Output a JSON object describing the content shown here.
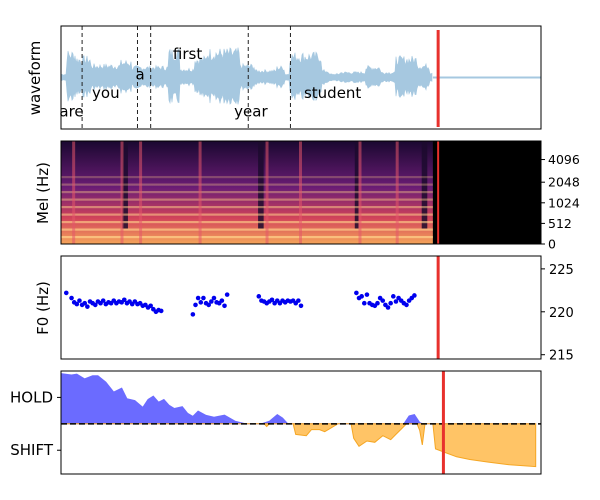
{
  "chart_data": [
    {
      "type": "area",
      "ylabel": "waveform",
      "words": [
        {
          "label": "are",
          "x": 0.04
        },
        {
          "label": "you",
          "x": 0.17
        },
        {
          "label": "a",
          "x": 0.3
        },
        {
          "label": "first",
          "x": 0.48
        },
        {
          "label": "year",
          "x": 0.72
        },
        {
          "label": "student",
          "x": 1.03
        }
      ],
      "boundaries": [
        0.08,
        0.29,
        0.34,
        0.71,
        0.87
      ],
      "cursor_x": 1.43,
      "audio_end_x": 1.41,
      "xlim": [
        0,
        1.82
      ],
      "colors": {
        "wave": "#a6c8e0",
        "cursor": "#e8312d"
      }
    },
    {
      "type": "heatmap",
      "ylabel": "Mel (Hz)",
      "yticks": [
        0,
        512,
        1024,
        2048,
        4096
      ],
      "ytick_labels": [
        "0",
        "512",
        "1024",
        "2048",
        "4096"
      ],
      "cursor_x": 1.43,
      "audio_end_x": 1.41,
      "xlim": [
        0,
        1.82
      ]
    },
    {
      "type": "scatter",
      "ylabel": "F0 (Hz)",
      "yticks": [
        215,
        220,
        225
      ],
      "ytick_labels": [
        "215",
        "220",
        "225"
      ],
      "ylim": [
        214.5,
        226.5
      ],
      "xlim": [
        0,
        1.82
      ],
      "cursor_x": 1.43,
      "point_color": "#0000ee",
      "points": [
        [
          0.02,
          222.2
        ],
        [
          0.04,
          221.6
        ],
        [
          0.05,
          221.1
        ],
        [
          0.06,
          220.9
        ],
        [
          0.07,
          221.3
        ],
        [
          0.08,
          220.8
        ],
        [
          0.09,
          221.0
        ],
        [
          0.1,
          220.6
        ],
        [
          0.11,
          221.2
        ],
        [
          0.12,
          221.0
        ],
        [
          0.13,
          220.8
        ],
        [
          0.14,
          221.2
        ],
        [
          0.15,
          221.0
        ],
        [
          0.16,
          221.3
        ],
        [
          0.17,
          220.9
        ],
        [
          0.18,
          221.1
        ],
        [
          0.19,
          221.0
        ],
        [
          0.2,
          221.3
        ],
        [
          0.21,
          221.0
        ],
        [
          0.22,
          221.2
        ],
        [
          0.23,
          221.1
        ],
        [
          0.24,
          221.4
        ],
        [
          0.25,
          221.0
        ],
        [
          0.26,
          221.2
        ],
        [
          0.27,
          220.9
        ],
        [
          0.28,
          221.2
        ],
        [
          0.29,
          220.9
        ],
        [
          0.3,
          221.0
        ],
        [
          0.31,
          220.7
        ],
        [
          0.32,
          220.8
        ],
        [
          0.33,
          220.5
        ],
        [
          0.34,
          220.7
        ],
        [
          0.35,
          220.3
        ],
        [
          0.36,
          220.0
        ],
        [
          0.37,
          220.2
        ],
        [
          0.38,
          220.1
        ],
        [
          0.5,
          219.7
        ],
        [
          0.51,
          220.8
        ],
        [
          0.52,
          221.6
        ],
        [
          0.53,
          221.1
        ],
        [
          0.54,
          221.6
        ],
        [
          0.55,
          221.0
        ],
        [
          0.56,
          220.8
        ],
        [
          0.57,
          221.2
        ],
        [
          0.58,
          221.6
        ],
        [
          0.59,
          221.1
        ],
        [
          0.6,
          221.0
        ],
        [
          0.61,
          221.3
        ],
        [
          0.62,
          220.7
        ],
        [
          0.63,
          222.0
        ],
        [
          0.75,
          221.8
        ],
        [
          0.76,
          221.3
        ],
        [
          0.77,
          221.2
        ],
        [
          0.78,
          221.0
        ],
        [
          0.79,
          221.2
        ],
        [
          0.8,
          221.4
        ],
        [
          0.81,
          221.0
        ],
        [
          0.82,
          221.3
        ],
        [
          0.83,
          221.0
        ],
        [
          0.84,
          221.3
        ],
        [
          0.85,
          221.1
        ],
        [
          0.86,
          221.3
        ],
        [
          0.87,
          221.2
        ],
        [
          0.88,
          221.3
        ],
        [
          0.89,
          221.0
        ],
        [
          0.9,
          221.3
        ],
        [
          0.91,
          220.7
        ],
        [
          1.12,
          222.2
        ],
        [
          1.13,
          221.6
        ],
        [
          1.14,
          221.8
        ],
        [
          1.15,
          221.0
        ],
        [
          1.16,
          222.0
        ],
        [
          1.17,
          221.0
        ],
        [
          1.18,
          220.8
        ],
        [
          1.19,
          220.7
        ],
        [
          1.2,
          221.0
        ],
        [
          1.21,
          221.6
        ],
        [
          1.22,
          221.3
        ],
        [
          1.23,
          220.8
        ],
        [
          1.24,
          220.5
        ],
        [
          1.25,
          221.0
        ],
        [
          1.26,
          221.8
        ],
        [
          1.27,
          221.2
        ],
        [
          1.28,
          221.6
        ],
        [
          1.29,
          221.3
        ],
        [
          1.3,
          221.0
        ],
        [
          1.31,
          220.8
        ],
        [
          1.32,
          221.3
        ],
        [
          1.33,
          221.6
        ],
        [
          1.34,
          221.9
        ]
      ]
    },
    {
      "type": "area",
      "yticks": [
        1,
        -1
      ],
      "ytick_labels": [
        "HOLD",
        "SHIFT"
      ],
      "ylim": [
        -1.9,
        2.0
      ],
      "xlim": [
        0,
        1.82
      ],
      "cursor_x": 1.45,
      "colors": {
        "hold": "#6b6bff",
        "shift": "#ffc466",
        "cursor": "#e8312d"
      },
      "hold_values": [
        [
          0.0,
          1.9
        ],
        [
          0.04,
          1.85
        ],
        [
          0.06,
          1.88
        ],
        [
          0.09,
          1.7
        ],
        [
          0.12,
          1.82
        ],
        [
          0.14,
          1.82
        ],
        [
          0.17,
          1.58
        ],
        [
          0.2,
          1.2
        ],
        [
          0.23,
          1.35
        ],
        [
          0.25,
          0.95
        ],
        [
          0.28,
          0.88
        ],
        [
          0.31,
          0.62
        ],
        [
          0.33,
          0.92
        ],
        [
          0.35,
          1.05
        ],
        [
          0.37,
          0.82
        ],
        [
          0.39,
          0.92
        ],
        [
          0.41,
          0.7
        ],
        [
          0.43,
          0.58
        ],
        [
          0.46,
          0.65
        ],
        [
          0.48,
          0.4
        ],
        [
          0.5,
          0.28
        ],
        [
          0.52,
          0.48
        ],
        [
          0.55,
          0.32
        ],
        [
          0.58,
          0.25
        ],
        [
          0.62,
          0.33
        ],
        [
          0.66,
          0.1
        ],
        [
          0.7,
          0.0
        ],
        [
          0.76,
          0.0
        ],
        [
          0.79,
          0.1
        ],
        [
          0.82,
          0.35
        ],
        [
          0.84,
          0.22
        ],
        [
          0.86,
          0.0
        ],
        [
          1.3,
          0.0
        ],
        [
          1.32,
          0.3
        ],
        [
          1.34,
          0.35
        ],
        [
          1.36,
          0.05
        ],
        [
          1.37,
          0.0
        ],
        [
          1.8,
          0.0
        ]
      ],
      "shift_values": [
        [
          0.0,
          0.0
        ],
        [
          0.77,
          0.0
        ],
        [
          0.78,
          -0.1
        ],
        [
          0.79,
          0.0
        ],
        [
          0.88,
          0.0
        ],
        [
          0.89,
          -0.4
        ],
        [
          0.93,
          -0.45
        ],
        [
          0.95,
          -0.22
        ],
        [
          0.98,
          -0.22
        ],
        [
          1.0,
          -0.3
        ],
        [
          1.02,
          -0.18
        ],
        [
          1.05,
          0.0
        ],
        [
          1.1,
          0.0
        ],
        [
          1.11,
          -0.55
        ],
        [
          1.13,
          -0.85
        ],
        [
          1.16,
          -0.65
        ],
        [
          1.19,
          -0.7
        ],
        [
          1.22,
          -0.45
        ],
        [
          1.25,
          -0.6
        ],
        [
          1.27,
          -0.4
        ],
        [
          1.29,
          -0.2
        ],
        [
          1.31,
          0.0
        ],
        [
          1.35,
          0.0
        ],
        [
          1.36,
          -0.25
        ],
        [
          1.37,
          -0.8
        ],
        [
          1.38,
          0.0
        ],
        [
          1.41,
          0.0
        ],
        [
          1.42,
          -0.95
        ],
        [
          1.46,
          -1.1
        ],
        [
          1.5,
          -1.25
        ],
        [
          1.55,
          -1.35
        ],
        [
          1.62,
          -1.45
        ],
        [
          1.7,
          -1.55
        ],
        [
          1.8,
          -1.62
        ],
        [
          1.8,
          0.0
        ]
      ]
    }
  ]
}
